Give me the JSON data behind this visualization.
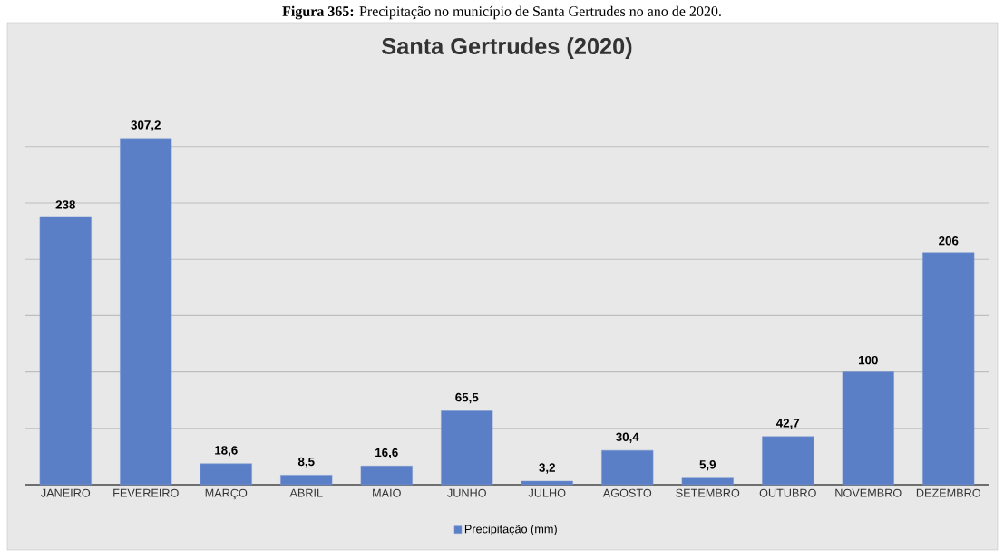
{
  "chart_data": {
    "type": "bar",
    "title": "Santa Gertrudes (2020)",
    "annotations": [
      "**Figura 365:** Precipitação no município de Santa Gertrudes no ano de 2020."
    ],
    "categories": [
      "JANEIRO",
      "FEVEREIRO",
      "MARÇO",
      "ABRIL",
      "MAIO",
      "JUNHO",
      "JULHO",
      "AGOSTO",
      "SETEMBRO",
      "OUTUBRO",
      "NOVEMBRO",
      "DEZEMBRO"
    ],
    "series": [
      {
        "name": "Precipitação (mm)",
        "color": "#5b7fc6",
        "values": [
          238,
          307.2,
          18.6,
          8.5,
          16.6,
          65.5,
          3.2,
          30.4,
          5.9,
          42.7,
          100,
          206
        ],
        "value_labels": [
          "238",
          "307,2",
          "18,6",
          "8,5",
          "16,6",
          "65,5",
          "3,2",
          "30,4",
          "5,9",
          "42,7",
          "100",
          "206"
        ]
      }
    ],
    "grid": "y",
    "legend": "bottom",
    "tick_labels": "x"
  }
}
